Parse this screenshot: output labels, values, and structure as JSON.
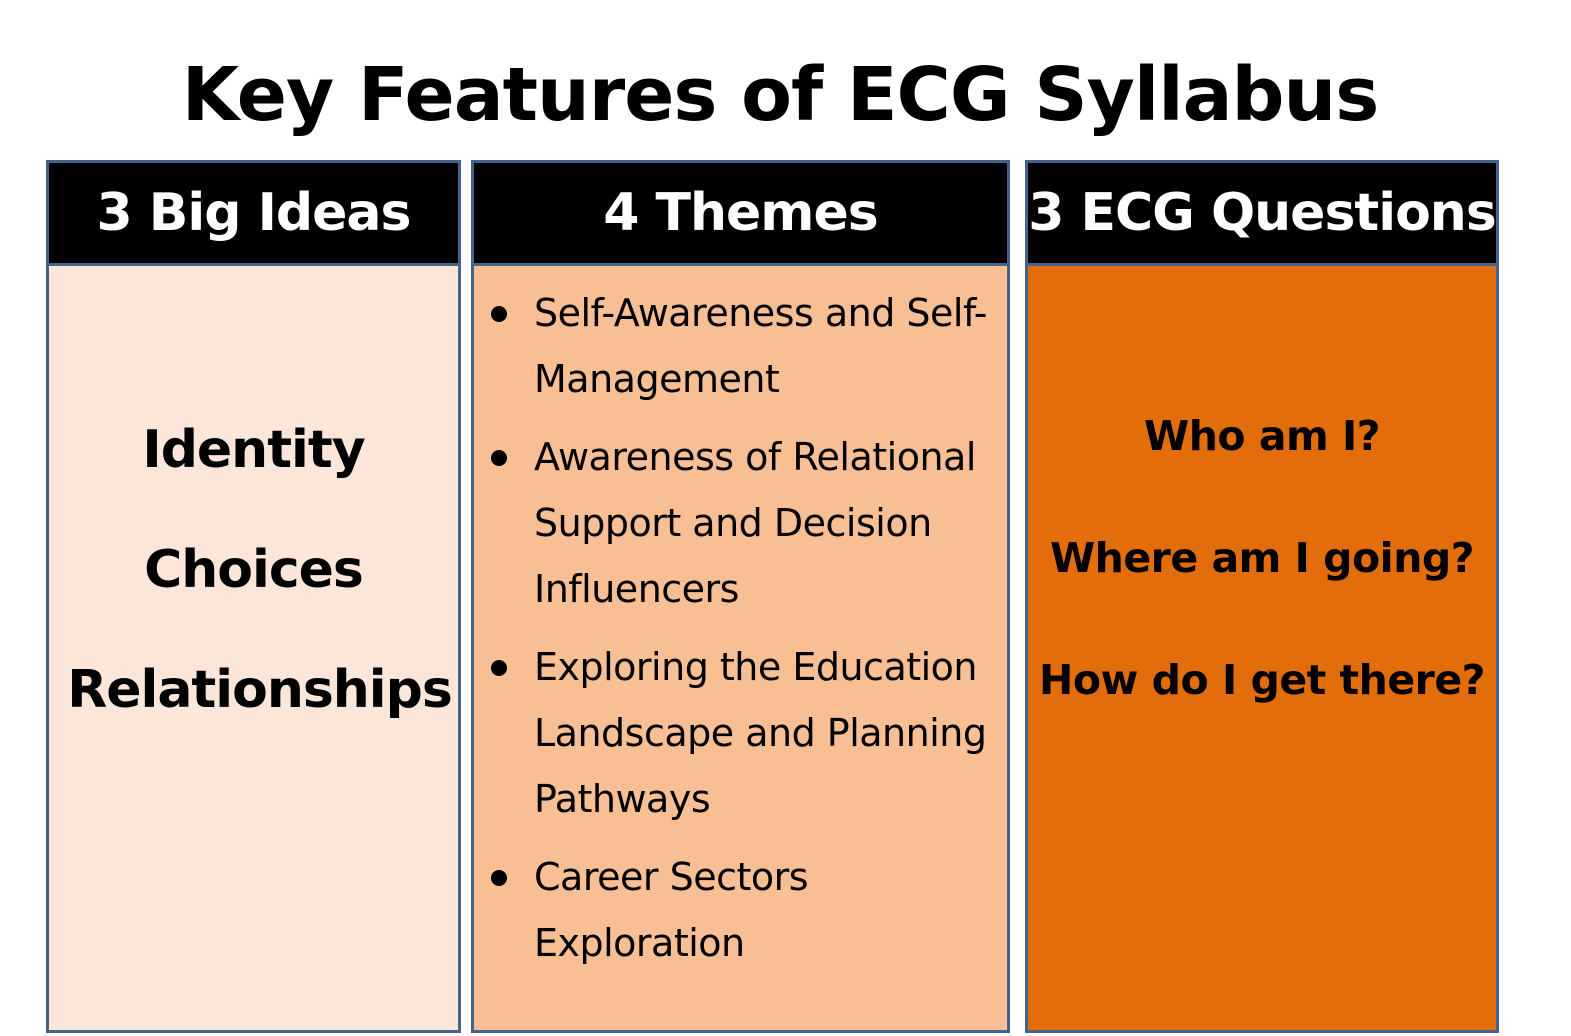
{
  "title": "Key Features of ECG Syllabus",
  "columns": [
    {
      "header": "3 Big Ideas",
      "items": [
        "Identity",
        "Choices",
        "Relationships"
      ]
    },
    {
      "header": "4 Themes",
      "items": [
        "Self-Awareness and Self-Management",
        "Awareness of Relational Support and Decision Influencers",
        "Exploring the Education Landscape and Planning Pathways",
        "Career Sectors Exploration"
      ]
    },
    {
      "header": "3 ECG Questions",
      "items": [
        "Who am I?",
        "Where am I going?",
        "How do I get there?"
      ]
    }
  ],
  "colors": {
    "header_bg": "#000000",
    "header_text": "#ffffff",
    "border": "#44648d",
    "big_ideas_bg": "#fce6d9",
    "themes_bg": "#f8bf94",
    "questions_bg": "#e36c0b"
  }
}
